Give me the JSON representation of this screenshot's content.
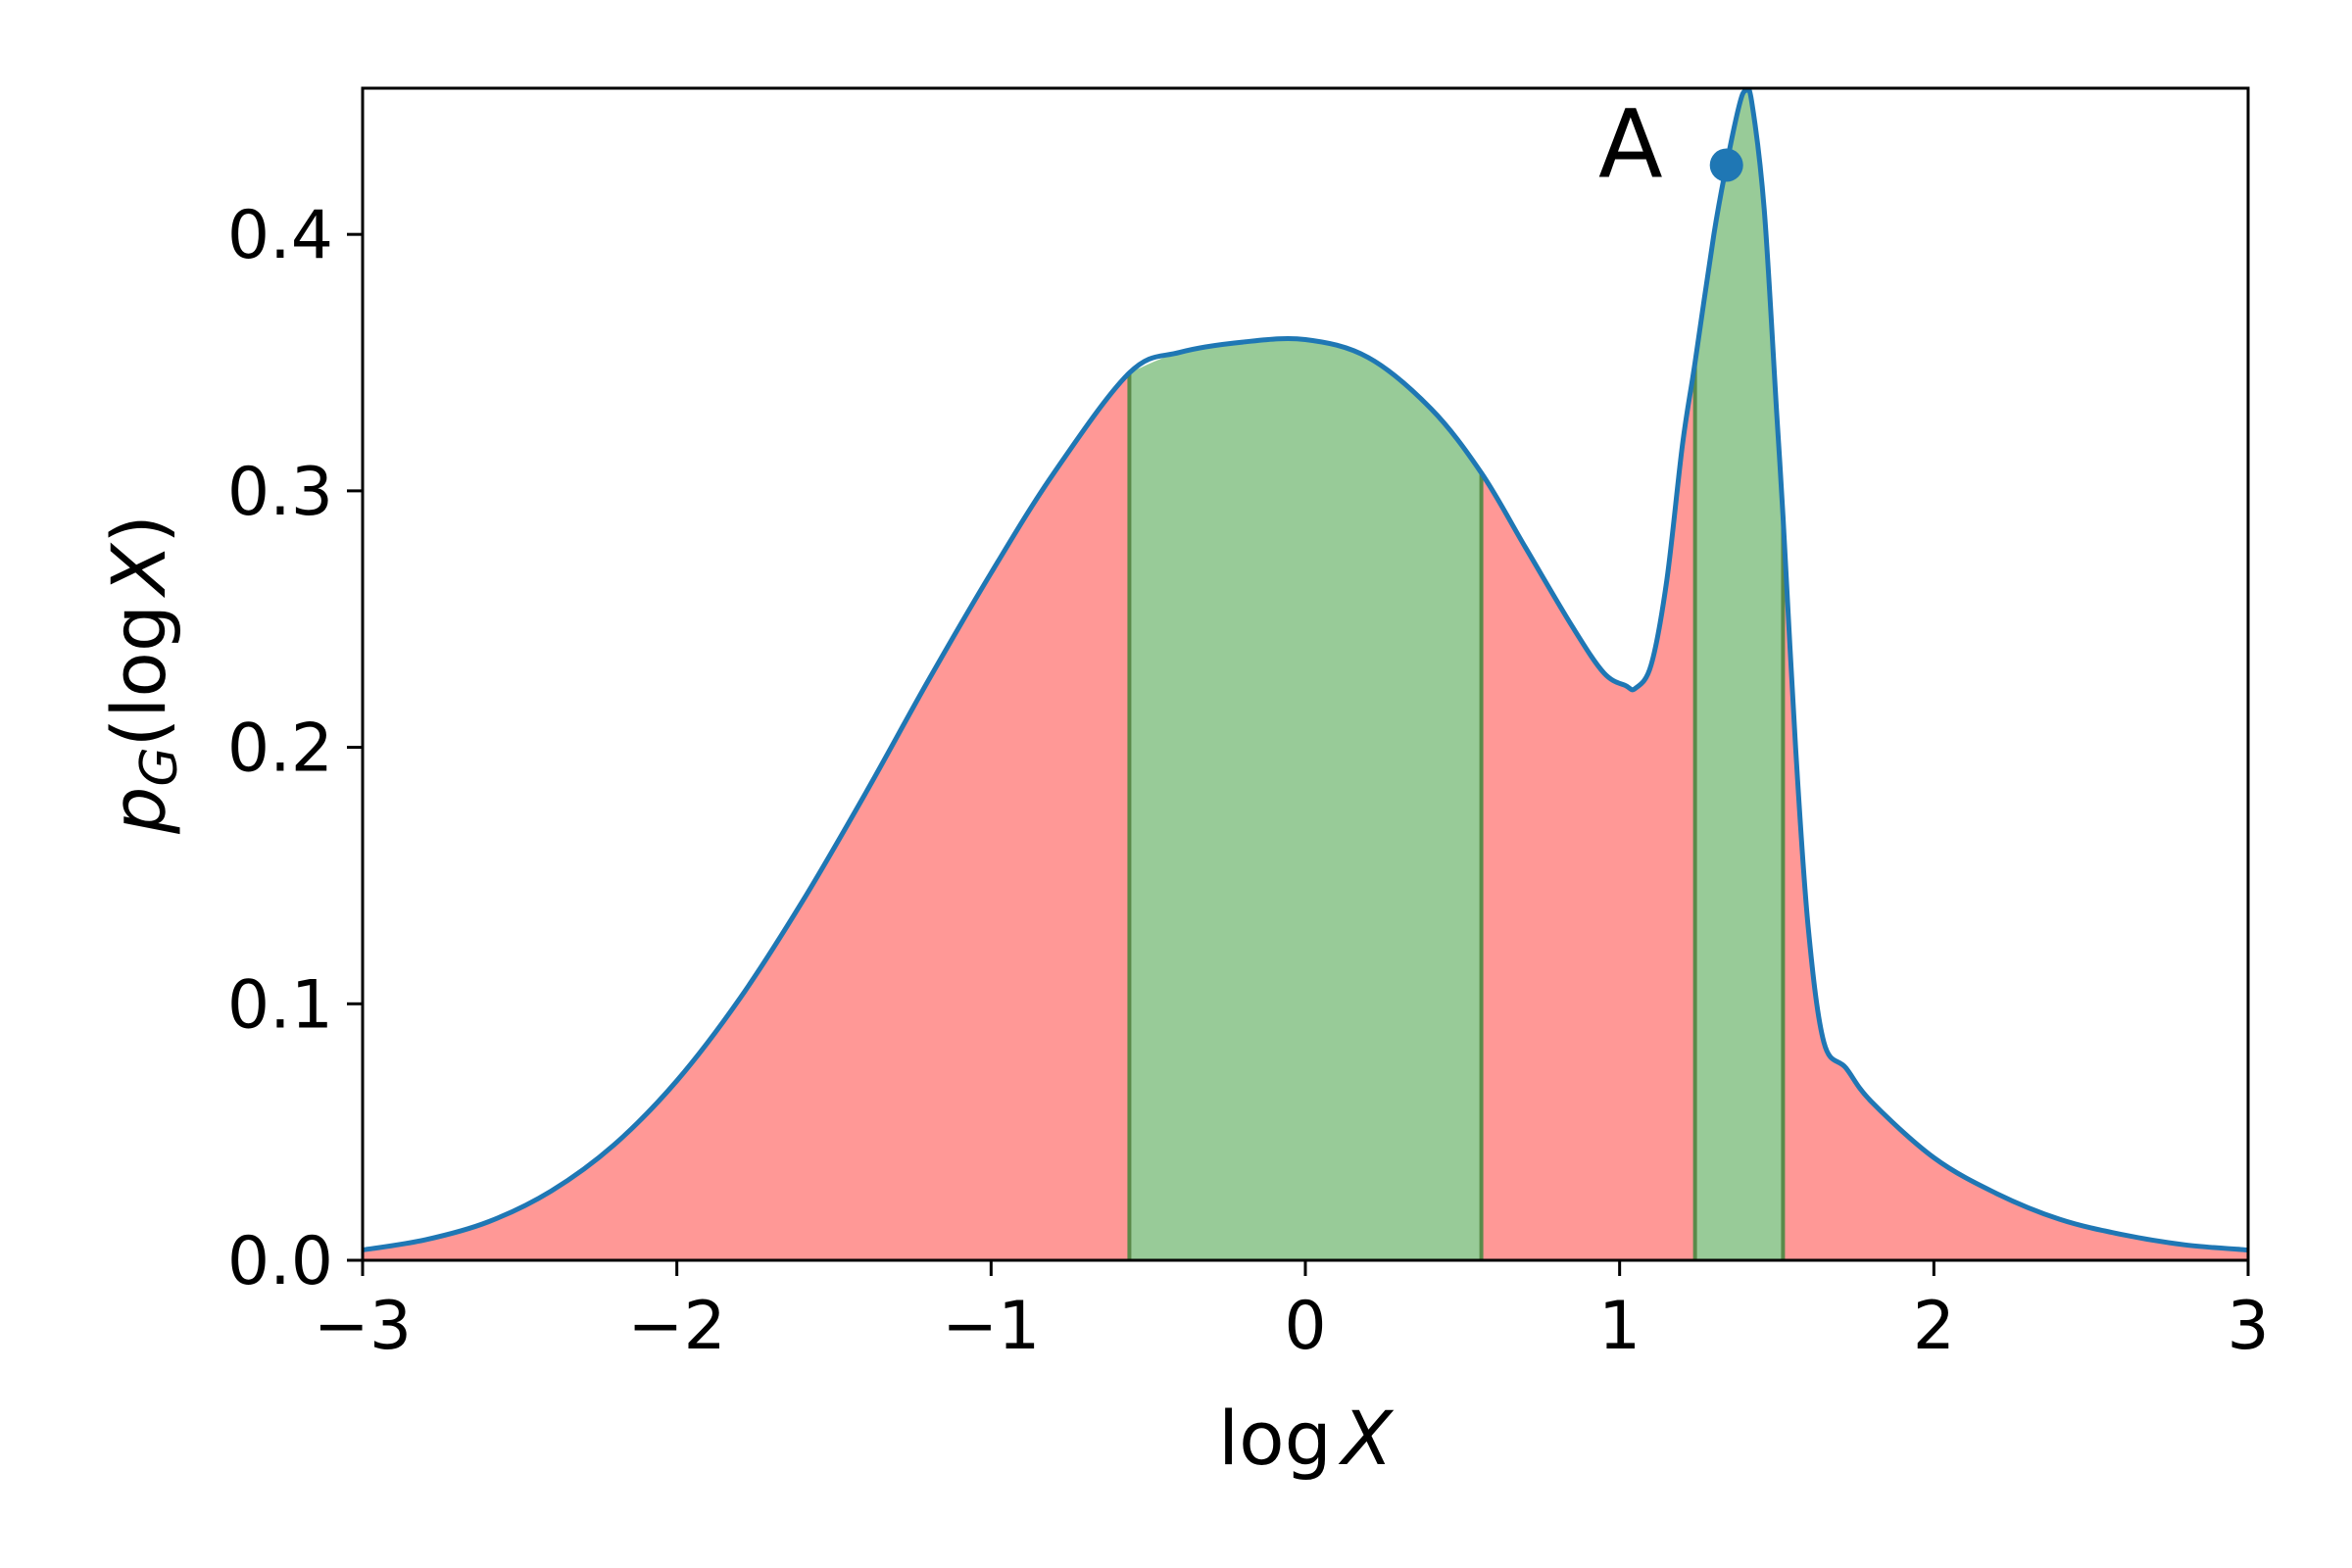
{
  "chart_data": {
    "type": "area",
    "xlabel": "log X",
    "xlabel_parts": {
      "func": "log",
      "var": "X"
    },
    "ylabel": "p_G(log X)",
    "ylabel_parts": {
      "p": "p",
      "sub": "G",
      "open": "(log",
      "var": "X",
      "close": ")"
    },
    "xlim": [
      -3,
      3
    ],
    "ylim": [
      0,
      0.457
    ],
    "xticks": [
      {
        "value": -3,
        "label": "−3"
      },
      {
        "value": -2,
        "label": "−2"
      },
      {
        "value": -1,
        "label": "−1"
      },
      {
        "value": 0,
        "label": "0"
      },
      {
        "value": 1,
        "label": "1"
      },
      {
        "value": 2,
        "label": "2"
      },
      {
        "value": 3,
        "label": "3"
      }
    ],
    "yticks": [
      {
        "value": 0.0,
        "label": "0.0"
      },
      {
        "value": 0.1,
        "label": "0.1"
      },
      {
        "value": 0.2,
        "label": "0.2"
      },
      {
        "value": 0.3,
        "label": "0.3"
      },
      {
        "value": 0.4,
        "label": "0.4"
      }
    ],
    "grid": false,
    "series": [
      {
        "x": [
          -3.0,
          -2.8,
          -2.6,
          -2.4,
          -2.2,
          -2.0,
          -1.8,
          -1.6,
          -1.4,
          -1.2,
          -1.0,
          -0.8,
          -0.56,
          -0.4,
          -0.2,
          0.0,
          0.2,
          0.4,
          0.56,
          0.7,
          0.85,
          0.95,
          1.02,
          1.05,
          1.1,
          1.15,
          1.2,
          1.24,
          1.3,
          1.34,
          1.38,
          1.4,
          1.42,
          1.46,
          1.5,
          1.52,
          1.56,
          1.6,
          1.65,
          1.72,
          1.8,
          2.0,
          2.2,
          2.4,
          2.6,
          2.8,
          3.0
        ],
        "y": [
          0.004,
          0.008,
          0.015,
          0.027,
          0.045,
          0.07,
          0.102,
          0.14,
          0.182,
          0.226,
          0.268,
          0.307,
          0.346,
          0.354,
          0.358,
          0.359,
          0.352,
          0.332,
          0.307,
          0.278,
          0.247,
          0.229,
          0.224,
          0.223,
          0.232,
          0.265,
          0.318,
          0.35,
          0.4,
          0.427,
          0.45,
          0.456,
          0.452,
          0.41,
          0.33,
          0.29,
          0.2,
          0.13,
          0.085,
          0.075,
          0.062,
          0.04,
          0.026,
          0.016,
          0.01,
          0.006,
          0.004
        ],
        "color": "#1f77b4"
      }
    ],
    "regions": [
      {
        "from": -3.0,
        "to": -0.56,
        "color": "#ff9896"
      },
      {
        "from": -0.56,
        "to": 0.56,
        "color": "#98cb98"
      },
      {
        "from": 0.56,
        "to": 1.24,
        "color": "#ff9896"
      },
      {
        "from": 1.24,
        "to": 1.52,
        "color": "#98cb98"
      },
      {
        "from": 1.52,
        "to": 3.0,
        "color": "#ff9896"
      }
    ],
    "boundary_color": "#5a8a4a",
    "annotations": [
      {
        "label": "A",
        "x": 1.34,
        "y": 0.427,
        "color": "#1f77b4"
      }
    ]
  }
}
